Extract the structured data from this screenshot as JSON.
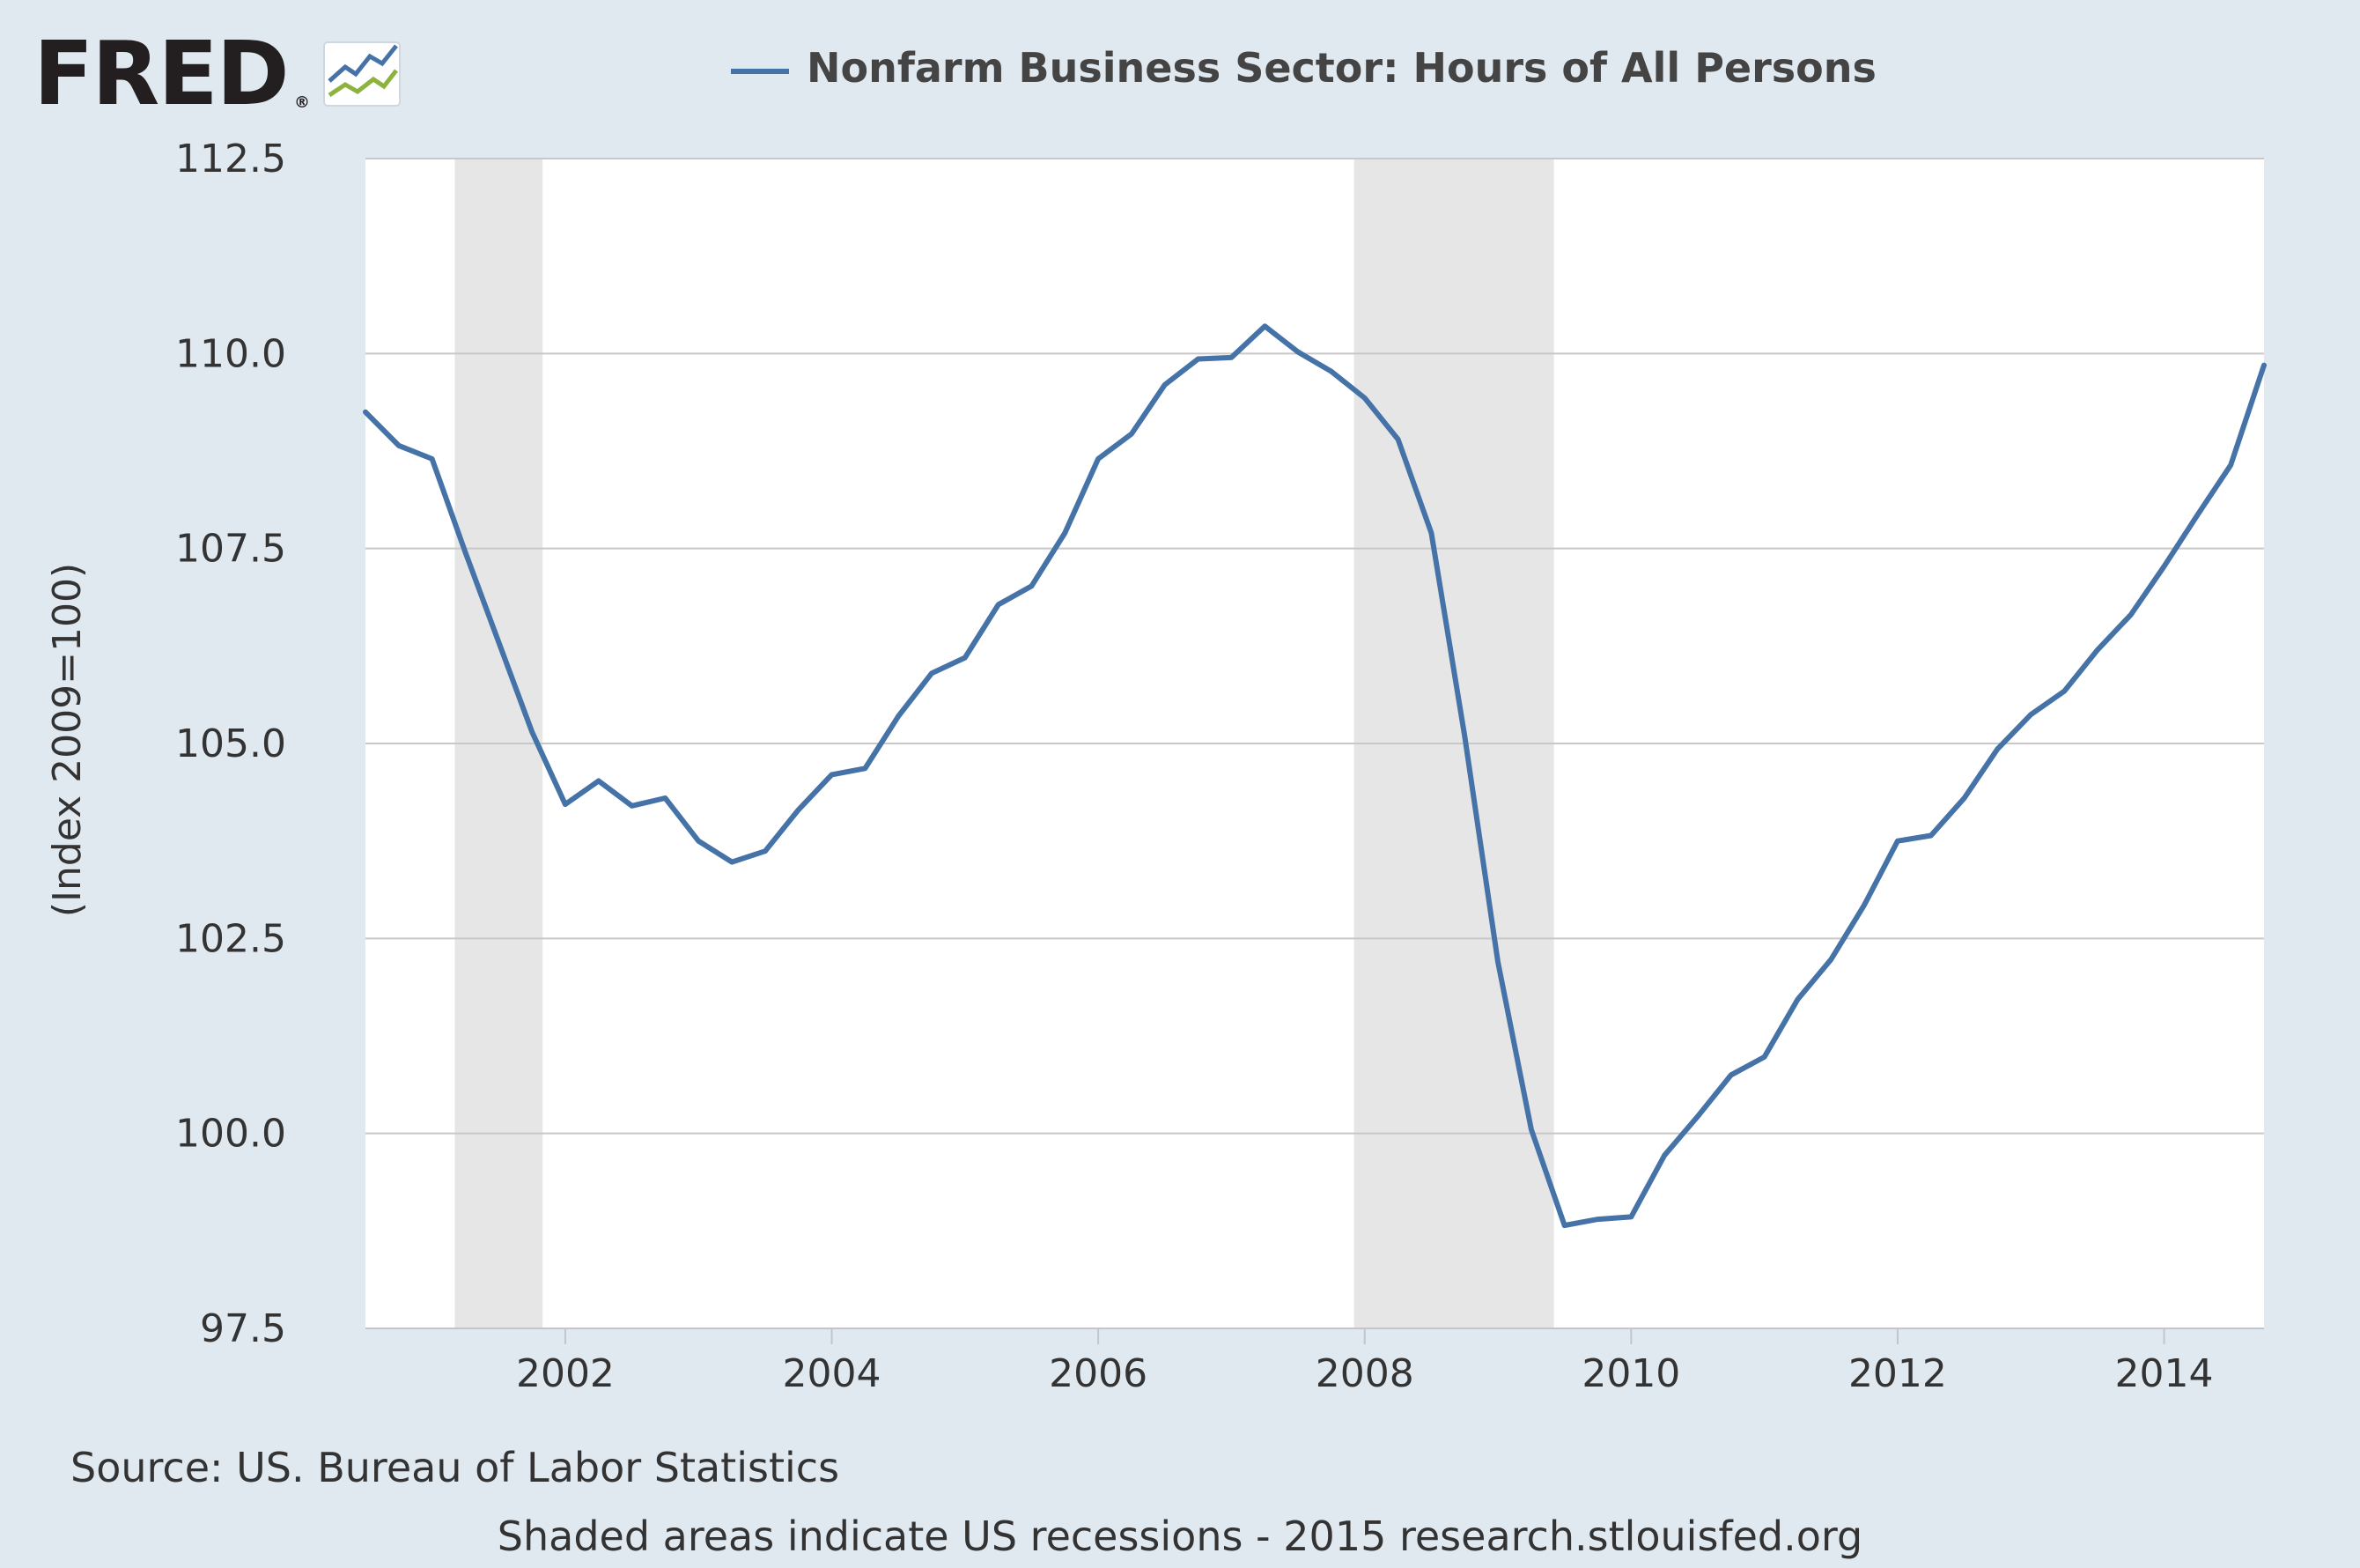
{
  "brand": {
    "logo_text": "FRED",
    "registered_mark": "®",
    "logo_icon": "line-chart-icon"
  },
  "colors": {
    "page_background": "#e1e9f0",
    "plot_background": "#ffffff",
    "series_line": "#4572a7",
    "recession_shade": "#e6e6e6",
    "gridline": "#c8c8c8"
  },
  "chart_data": {
    "type": "line",
    "title": "",
    "legend_placement": "top-center",
    "grid": true,
    "xlabel": "",
    "ylabel": "(Index 2009=100)",
    "xlim": [
      2000.5,
      2014.75
    ],
    "ylim": [
      97.5,
      112.5
    ],
    "x_tick_labels": [
      "2002",
      "2004",
      "2006",
      "2008",
      "2010",
      "2012",
      "2014"
    ],
    "y_tick_labels": [
      "97.5",
      "100.0",
      "102.5",
      "105.0",
      "107.5",
      "110.0",
      "112.5"
    ],
    "recessions": [
      {
        "start": 2001.17,
        "end": 2001.83
      },
      {
        "start": 2007.92,
        "end": 2009.42
      }
    ],
    "series": [
      {
        "name": "Nonfarm Business Sector: Hours of All Persons",
        "x": [
          2000.5,
          2000.75,
          2001.0,
          2001.25,
          2001.5,
          2001.75,
          2002.0,
          2002.25,
          2002.5,
          2002.75,
          2003.0,
          2003.25,
          2003.5,
          2003.75,
          2004.0,
          2004.25,
          2004.5,
          2004.75,
          2005.0,
          2005.25,
          2005.5,
          2005.75,
          2006.0,
          2006.25,
          2006.5,
          2006.75,
          2007.0,
          2007.25,
          2007.5,
          2007.75,
          2008.0,
          2008.25,
          2008.5,
          2008.75,
          2009.0,
          2009.25,
          2009.5,
          2009.75,
          2010.0,
          2010.25,
          2010.5,
          2010.75,
          2011.0,
          2011.25,
          2011.5,
          2011.75,
          2012.0,
          2012.25,
          2012.5,
          2012.75,
          2013.0,
          2013.25,
          2013.5,
          2013.75,
          2014.0,
          2014.25,
          2014.5,
          2014.75
        ],
        "values": [
          109.25,
          108.82,
          108.65,
          107.45,
          106.3,
          105.15,
          104.22,
          104.52,
          104.2,
          104.3,
          103.75,
          103.48,
          103.62,
          104.15,
          104.6,
          104.68,
          105.35,
          105.9,
          106.1,
          106.78,
          107.02,
          107.7,
          108.65,
          108.97,
          109.6,
          109.93,
          109.95,
          110.35,
          110.02,
          109.77,
          109.43,
          108.9,
          107.7,
          105.1,
          102.2,
          100.05,
          98.82,
          98.9,
          98.93,
          99.72,
          100.22,
          100.75,
          100.98,
          101.72,
          102.23,
          102.93,
          103.75,
          103.82,
          104.3,
          104.93,
          105.37,
          105.67,
          106.2,
          106.65,
          107.27,
          107.93,
          108.57,
          109.85
        ]
      }
    ]
  },
  "footer": {
    "source": "Source: US. Bureau of Labor Statistics",
    "note": "Shaded areas indicate US recessions - 2015 research.stlouisfed.org"
  }
}
